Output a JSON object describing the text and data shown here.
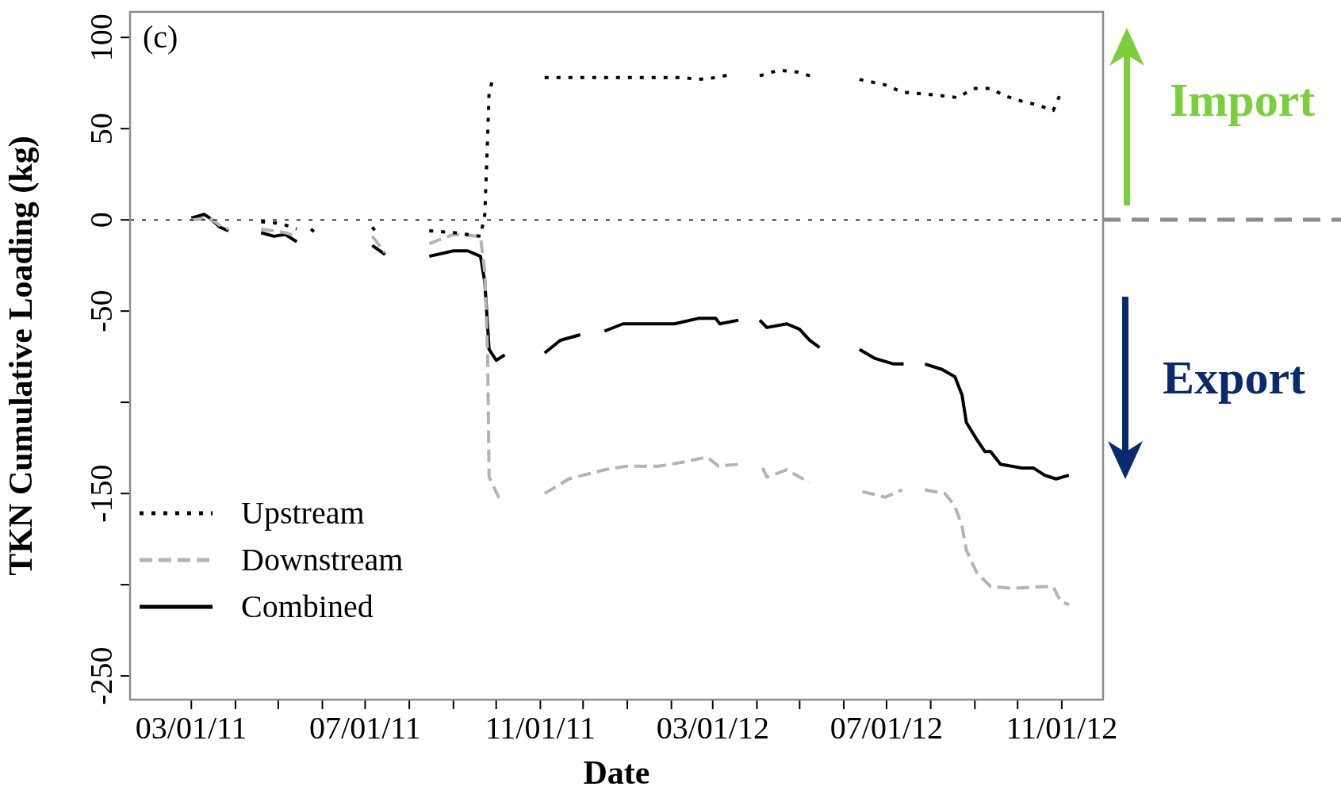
{
  "chart_data": {
    "type": "line",
    "xlabel": "Date",
    "ylabel": "TKN Cumulative Loading (kg)",
    "annotations": [
      "(c)",
      "Import",
      "Export"
    ],
    "xlim": [
      "2011-01-17",
      "2012-11-30"
    ],
    "ylim": [
      -263,
      114
    ],
    "xticks": [
      {
        "value": "2011-03-01",
        "label": "03/01/11"
      },
      {
        "value": "2011-04-01",
        "label": null
      },
      {
        "value": "2011-05-01",
        "label": null
      },
      {
        "value": "2011-06-01",
        "label": null
      },
      {
        "value": "2011-07-01",
        "label": "07/01/11"
      },
      {
        "value": "2011-08-01",
        "label": null
      },
      {
        "value": "2011-09-01",
        "label": null
      },
      {
        "value": "2011-10-01",
        "label": null
      },
      {
        "value": "2011-11-01",
        "label": "11/01/11"
      },
      {
        "value": "2011-12-01",
        "label": null
      },
      {
        "value": "2012-01-01",
        "label": null
      },
      {
        "value": "2012-02-01",
        "label": null
      },
      {
        "value": "2012-03-01",
        "label": "03/01/12"
      },
      {
        "value": "2012-04-01",
        "label": null
      },
      {
        "value": "2012-05-01",
        "label": null
      },
      {
        "value": "2012-06-01",
        "label": null
      },
      {
        "value": "2012-07-01",
        "label": "07/01/12"
      },
      {
        "value": "2012-08-01",
        "label": null
      },
      {
        "value": "2012-09-01",
        "label": null
      },
      {
        "value": "2012-10-01",
        "label": null
      },
      {
        "value": "2012-11-01",
        "label": "11/01/12"
      }
    ],
    "yticks": [
      100,
      50,
      0,
      -50,
      {
        "value": -100,
        "label": null
      },
      -150,
      {
        "value": -200,
        "label": null
      },
      -250
    ],
    "legend": "bottom left",
    "grid": false,
    "ref_lines": [
      {
        "axis": "y",
        "value": 0,
        "color": "#000000",
        "line_style": "dotted"
      }
    ],
    "series": [
      {
        "name": "Upstream",
        "color": "#000000",
        "line_style": "dotted",
        "x": [
          "2011-04-19",
          "2011-05-03",
          "2011-05-14",
          "2011-05-19",
          "2011-05-24",
          "2011-05-28",
          "2011-06-15",
          "2011-07-06",
          "2011-07-09",
          "2011-07-28",
          "2011-08-15",
          "2011-09-01",
          "2011-09-20",
          "2011-09-23",
          "2011-09-25",
          "2011-09-26",
          "2011-09-29",
          "2011-10-18",
          "2011-11-04",
          "2011-11-21",
          "2011-12-19",
          "2012-01-13",
          "2012-02-08",
          "2012-02-20",
          "2012-03-03",
          "2012-03-16",
          "2012-03-25",
          "2012-04-03",
          "2012-04-16",
          "2012-04-30",
          "2012-05-12",
          "2012-05-28",
          "2012-06-12",
          "2012-06-30",
          "2012-07-12",
          "2012-07-28",
          "2012-08-09",
          "2012-08-20",
          "2012-08-31",
          "2012-09-12",
          "2012-09-22",
          "2012-10-04",
          "2012-10-15",
          "2012-10-26",
          "2012-10-31"
        ],
        "values": [
          -1,
          -2,
          -5,
          null,
          -5,
          -8,
          null,
          -4,
          -7,
          null,
          -6,
          -7,
          -9,
          3,
          45,
          70,
          78,
          null,
          78,
          78,
          78,
          78,
          78,
          77,
          78,
          80,
          null,
          79,
          82,
          81,
          78,
          null,
          77,
          74,
          70,
          69,
          68,
          67,
          72,
          72,
          68,
          65,
          63,
          60,
          69
        ]
      },
      {
        "name": "Downstream",
        "color": "#b3b3b3",
        "line_style": "dashed",
        "x": [
          "2011-03-01",
          "2011-03-14",
          "2011-03-21",
          "2011-03-27",
          "2011-04-08",
          "2011-04-19",
          "2011-05-06",
          "2011-05-14",
          "2011-06-10",
          "2011-07-06",
          "2011-07-15",
          "2011-07-30",
          "2011-08-15",
          "2011-09-01",
          "2011-09-20",
          "2011-09-23",
          "2011-09-25",
          "2011-09-26",
          "2011-10-04",
          "2011-10-20",
          "2011-11-04",
          "2011-11-21",
          "2011-12-16",
          "2012-01-01",
          "2012-01-23",
          "2012-02-08",
          "2012-02-26",
          "2012-03-05",
          "2012-03-19",
          "2012-03-27",
          "2012-04-05",
          "2012-04-08",
          "2012-04-22",
          "2012-05-08",
          "2012-05-26",
          "2012-06-14",
          "2012-06-30",
          "2012-07-12",
          "2012-07-20",
          "2012-07-28",
          "2012-08-11",
          "2012-08-18",
          "2012-08-23",
          "2012-08-26",
          "2012-09-02",
          "2012-09-12",
          "2012-09-28",
          "2012-10-20",
          "2012-10-26",
          "2012-10-31",
          "2012-11-06"
        ],
        "values": [
          0,
          1,
          -3,
          -5,
          null,
          -5,
          -7,
          -9,
          null,
          -9,
          -18,
          null,
          -13,
          -8,
          -9,
          -29,
          -74,
          -141,
          -154,
          null,
          -150,
          -142,
          -137,
          -135,
          -135,
          -133,
          -130,
          -135,
          -134,
          null,
          -136,
          -141,
          -137,
          -144,
          null,
          -149,
          -152,
          -148,
          null,
          -148,
          -150,
          -157,
          -168,
          -181,
          -193,
          -201,
          -202,
          -201,
          -201,
          -209,
          -211
        ]
      },
      {
        "name": "Combined",
        "color": "#000000",
        "line_style": "solid",
        "x": [
          "2011-03-01",
          "2011-03-10",
          "2011-03-14",
          "2011-03-21",
          "2011-03-27",
          "2011-04-08",
          "2011-04-19",
          "2011-04-28",
          "2011-05-06",
          "2011-05-14",
          "2011-06-10",
          "2011-07-06",
          "2011-07-15",
          "2011-07-30",
          "2011-08-15",
          "2011-09-01",
          "2011-09-11",
          "2011-09-20",
          "2011-09-23",
          "2011-09-26",
          "2011-10-01",
          "2011-10-07",
          "2011-10-20",
          "2011-11-04",
          "2011-11-15",
          "2011-11-29",
          "2011-12-08",
          "2011-12-16",
          "2011-12-29",
          "2012-01-13",
          "2012-02-03",
          "2012-02-20",
          "2012-03-03",
          "2012-03-06",
          "2012-03-19",
          "2012-03-27",
          "2012-04-03",
          "2012-04-08",
          "2012-04-22",
          "2012-05-01",
          "2012-05-08",
          "2012-05-15",
          "2012-05-28",
          "2012-06-12",
          "2012-06-23",
          "2012-07-06",
          "2012-07-13",
          "2012-07-20",
          "2012-07-28",
          "2012-08-09",
          "2012-08-18",
          "2012-08-23",
          "2012-08-26",
          "2012-09-02",
          "2012-09-08",
          "2012-09-12",
          "2012-09-19",
          "2012-10-04",
          "2012-10-12",
          "2012-10-20",
          "2012-10-28",
          "2012-11-06"
        ],
        "values": [
          1,
          3,
          1,
          -4,
          -6,
          null,
          -7,
          -9,
          -8,
          -12,
          null,
          -14,
          -19,
          null,
          -20,
          -17,
          -17,
          -20,
          -34,
          -71,
          -77,
          -74,
          null,
          -73,
          -66,
          -63,
          null,
          -61,
          -57,
          -57,
          -57,
          -54,
          -54,
          -57,
          -55,
          null,
          -55,
          -59,
          -57,
          -60,
          -66,
          -70,
          null,
          -71,
          -76,
          -79,
          -79,
          null,
          -79,
          -82,
          -86,
          -96,
          -111,
          -120,
          -127,
          -127,
          -134,
          -136,
          -136,
          -140,
          -142,
          -140
        ]
      }
    ]
  }
}
